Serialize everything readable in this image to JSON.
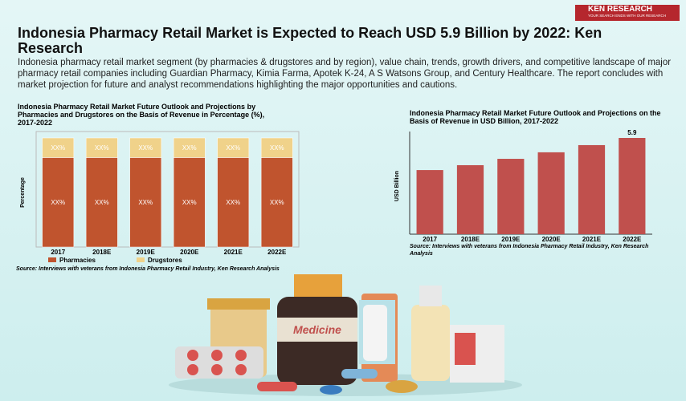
{
  "header": {
    "brand": "KEN RESEARCH",
    "tagline": "YOUR SEARCH ENDS WITH OUR RESEARCH",
    "title": "Indonesia Pharmacy Retail Market is Expected to Reach USD 5.9 Billion by 2022: Ken Research",
    "description": "Indonesia pharmacy retail market segment (by pharmacies & drugstores and by region), value chain, trends, growth drivers, and competitive landscape of major pharmacy retail companies including Guardian Pharmacy, Kimia Farma, Apotek K-24, A S Watsons Group, and Century Healthcare. The report concludes with market projection for future and analyst recommendations highlighting the major opportunities and cautions."
  },
  "chart_data": [
    {
      "type": "stacked_bar",
      "title": "Indonesia Pharmacy Retail Market Future Outlook and Projections by Pharmacies and Drugstores on the Basis of Revenue in Percentage (%), 2017-2022",
      "ylabel": "Percentage",
      "categories": [
        "2017",
        "2018E",
        "2019E",
        "2020E",
        "2021E",
        "2022E"
      ],
      "ylim": [
        0,
        100
      ],
      "series": [
        {
          "name": "Pharmacies",
          "color": "#c0542e",
          "values": [
            82,
            82,
            82,
            82,
            82,
            82
          ],
          "value_labels": [
            "XX%",
            "XX%",
            "XX%",
            "XX%",
            "XX%",
            "XX%"
          ]
        },
        {
          "name": "Drugstores",
          "color": "#f0d28a",
          "values": [
            18,
            18,
            18,
            18,
            18,
            18
          ],
          "value_labels": [
            "XX%",
            "XX%",
            "XX%",
            "XX%",
            "XX%",
            "XX%"
          ]
        }
      ],
      "source": "Source: Interviews with veterans from Indonesia Pharmacy Retail Industry, Ken Research Analysis"
    },
    {
      "type": "bar",
      "title": "Indonesia Pharmacy Retail Market Future Outlook and Projections on the Basis of Revenue in USD Billion, 2017-2022",
      "ylabel": "USD Billion",
      "categories": [
        "2017",
        "2018E",
        "2019E",
        "2020E",
        "2021E",
        "2022E"
      ],
      "ylim": [
        0,
        5.9
      ],
      "values": [
        3.93,
        4.23,
        4.62,
        5.02,
        5.46,
        5.9
      ],
      "value_labels": [
        null,
        null,
        null,
        null,
        null,
        "5.9"
      ],
      "color": "#c0504d",
      "source": "Source: Interviews with veterans from Indonesia Pharmacy Retail Industry, Ken Research Analysis"
    }
  ],
  "illustration": {
    "label": "Medicine"
  }
}
